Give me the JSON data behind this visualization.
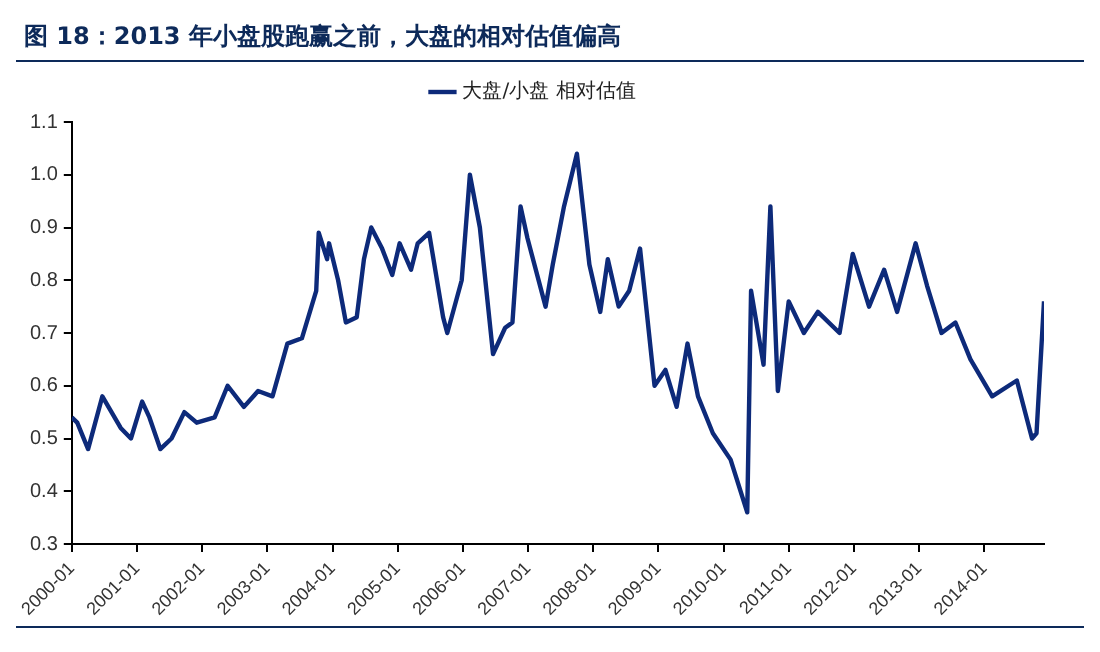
{
  "chart_data": {
    "type": "line",
    "title": "图 18：2013 年小盘股跑赢之前，大盘的相对估值偏高",
    "x": [
      "2000-01-01",
      "2000-02-01",
      "2000-04-01",
      "2000-06-20",
      "2000-10-01",
      "2000-11-28",
      "2001-01-30",
      "2001-03-10",
      "2001-05-10",
      "2001-07-12",
      "2001-09-23",
      "2001-12-01",
      "2002-03-10",
      "2002-05-22",
      "2002-08-22",
      "2002-11-10",
      "2003-01-30",
      "2003-04-22",
      "2003-07-12",
      "2003-10-01",
      "2003-10-15",
      "2003-12-01",
      "2003-12-12",
      "2004-02-02",
      "2004-03-15",
      "2004-05-15",
      "2004-06-25",
      "2004-08-05",
      "2004-10-05",
      "2004-12-01",
      "2005-01-12",
      "2005-03-15",
      "2005-04-22",
      "2005-06-25",
      "2005-09-12",
      "2005-10-05",
      "2005-12-25",
      "2006-02-10",
      "2006-04-05",
      "2006-06-18",
      "2006-08-25",
      "2006-10-05",
      "2006-11-20",
      "2006-12-28",
      "2007-04-08",
      "2007-05-18",
      "2007-07-20",
      "2007-10-01",
      "2007-12-10",
      "2008-02-10",
      "2008-03-22",
      "2008-05-22",
      "2008-07-20",
      "2008-09-20",
      "2008-12-10",
      "2009-02-10",
      "2009-04-12",
      "2009-06-12",
      "2009-08-10",
      "2009-11-02",
      "2010-02-10",
      "2010-05-12",
      "2010-06-03",
      "2010-08-12",
      "2010-09-20",
      "2010-11-01",
      "2011-01-01",
      "2011-03-25",
      "2011-06-12",
      "2011-10-12",
      "2011-12-25",
      "2012-03-25",
      "2012-06-18",
      "2012-08-30",
      "2012-12-12",
      "2013-02-15",
      "2013-05-05",
      "2013-07-22",
      "2013-10-15",
      "2014-02-15",
      "2014-07-01",
      "2014-09-25",
      "2014-10-20",
      "2014-12-01"
    ],
    "series": [
      {
        "name": "大盘/小盘 相对估值",
        "color": "#0d2a7a",
        "values": [
          0.54,
          0.53,
          0.48,
          0.58,
          0.52,
          0.5,
          0.57,
          0.54,
          0.48,
          0.5,
          0.55,
          0.53,
          0.54,
          0.6,
          0.56,
          0.59,
          0.58,
          0.68,
          0.69,
          0.78,
          0.89,
          0.84,
          0.87,
          0.8,
          0.72,
          0.73,
          0.84,
          0.9,
          0.86,
          0.81,
          0.87,
          0.82,
          0.87,
          0.89,
          0.73,
          0.7,
          0.8,
          1.0,
          0.9,
          0.66,
          0.71,
          0.72,
          0.94,
          0.88,
          0.75,
          0.83,
          0.94,
          1.04,
          0.83,
          0.74,
          0.84,
          0.75,
          0.78,
          0.86,
          0.6,
          0.63,
          0.56,
          0.68,
          0.58,
          0.51,
          0.46,
          0.36,
          0.78,
          0.64,
          0.94,
          0.59,
          0.76,
          0.7,
          0.74,
          0.7,
          0.85,
          0.75,
          0.82,
          0.74,
          0.87,
          0.79,
          0.7,
          0.72,
          0.65,
          0.58,
          0.61,
          0.5,
          0.51,
          0.76
        ]
      }
    ],
    "xlim": [
      "2000-01",
      "2014-12"
    ],
    "xticks": [
      "2000-01",
      "2001-01",
      "2002-01",
      "2003-01",
      "2004-01",
      "2005-01",
      "2006-01",
      "2007-01",
      "2008-01",
      "2009-01",
      "2010-01",
      "2011-01",
      "2012-01",
      "2013-01",
      "2014-01"
    ],
    "ylim": [
      0.3,
      1.1
    ],
    "yticks": [
      0.3,
      0.4,
      0.5,
      0.6,
      0.7,
      0.8,
      0.9,
      {
        "value": 1,
        "label": "1.0"
      },
      1.1
    ],
    "grid": false,
    "legend": "top",
    "marker": "none",
    "line_style": "solid"
  }
}
